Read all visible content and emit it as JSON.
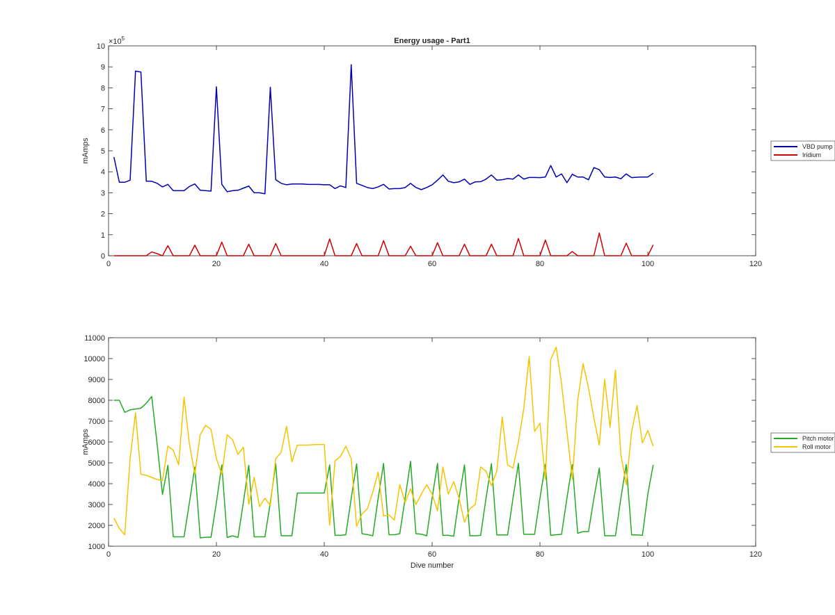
{
  "chart_data": [
    {
      "type": "line",
      "title": "Energy usage - Part1",
      "xlabel": "",
      "ylabel": "mAmps",
      "xlim": [
        0,
        120
      ],
      "ylim": [
        0,
        1000000
      ],
      "xticks": [
        "0",
        "20",
        "40",
        "60",
        "80",
        "100",
        "120"
      ],
      "yticks": [
        "0",
        "1",
        "2",
        "3",
        "4",
        "5",
        "6",
        "7",
        "8",
        "9",
        "10"
      ],
      "exponent_base": "×10",
      "exponent_power": "5",
      "legend_position": "outside-right",
      "series": [
        {
          "name": "VBD pump",
          "color": "#0000b0",
          "x": [
            1,
            2,
            3,
            4,
            5,
            6,
            7,
            8,
            9,
            10,
            11,
            12,
            13,
            14,
            15,
            16,
            17,
            18,
            19,
            20,
            21,
            22,
            23,
            24,
            25,
            26,
            27,
            28,
            29,
            30,
            31,
            32,
            33,
            34,
            35,
            36,
            37,
            38,
            39,
            40,
            41,
            42,
            43,
            44,
            45,
            46,
            47,
            48,
            49,
            50,
            51,
            52,
            53,
            54,
            55,
            56,
            57,
            58,
            59,
            60,
            61,
            62,
            63,
            64,
            65,
            66,
            67,
            68,
            69,
            70,
            71,
            72,
            73,
            74,
            75,
            76,
            77,
            78,
            79,
            80,
            81,
            82,
            83,
            84,
            85,
            86,
            87,
            88,
            89,
            90,
            91,
            92,
            93,
            94,
            95,
            96,
            97,
            98,
            99,
            100,
            101
          ],
          "y": [
            470000,
            350000,
            350000,
            360000,
            880000,
            875000,
            355000,
            355000,
            345000,
            328000,
            340000,
            310000,
            310000,
            310000,
            330000,
            342000,
            312000,
            310000,
            308000,
            805000,
            340000,
            305000,
            310000,
            312000,
            322000,
            332000,
            300000,
            300000,
            295000,
            803000,
            362000,
            345000,
            338000,
            342000,
            342000,
            342000,
            340000,
            340000,
            340000,
            338000,
            338000,
            320000,
            333000,
            325000,
            910000,
            345000,
            335000,
            325000,
            320000,
            328000,
            340000,
            318000,
            320000,
            320000,
            325000,
            345000,
            325000,
            315000,
            325000,
            338000,
            360000,
            385000,
            355000,
            348000,
            352000,
            365000,
            340000,
            352000,
            353000,
            365000,
            385000,
            360000,
            362000,
            368000,
            365000,
            385000,
            365000,
            373000,
            373000,
            372000,
            375000,
            430000,
            375000,
            390000,
            348000,
            388000,
            375000,
            375000,
            362000,
            420000,
            410000,
            375000,
            373000,
            375000,
            367000,
            390000,
            372000,
            374000,
            375000,
            375000,
            393000
          ]
        },
        {
          "name": "Iridium",
          "color": "#cc0000",
          "x": [
            1,
            2,
            3,
            4,
            5,
            6,
            7,
            8,
            9,
            10,
            11,
            12,
            13,
            14,
            15,
            16,
            17,
            18,
            19,
            20,
            21,
            22,
            23,
            24,
            25,
            26,
            27,
            28,
            29,
            30,
            31,
            32,
            33,
            34,
            35,
            36,
            37,
            38,
            39,
            40,
            41,
            42,
            43,
            44,
            45,
            46,
            47,
            48,
            49,
            50,
            51,
            52,
            53,
            54,
            55,
            56,
            57,
            58,
            59,
            60,
            61,
            62,
            63,
            64,
            65,
            66,
            67,
            68,
            69,
            70,
            71,
            72,
            73,
            74,
            75,
            76,
            77,
            78,
            79,
            80,
            81,
            82,
            83,
            84,
            85,
            86,
            87,
            88,
            89,
            90,
            91,
            92,
            93,
            94,
            95,
            96,
            97,
            98,
            99,
            100,
            101
          ],
          "y": [
            0,
            0,
            0,
            0,
            0,
            0,
            0,
            18000,
            10000,
            0,
            48000,
            0,
            0,
            0,
            0,
            50000,
            0,
            0,
            0,
            0,
            65000,
            0,
            0,
            0,
            0,
            55000,
            0,
            0,
            0,
            0,
            58000,
            0,
            0,
            0,
            0,
            0,
            0,
            0,
            0,
            0,
            80000,
            0,
            0,
            0,
            0,
            58000,
            0,
            0,
            0,
            0,
            72000,
            0,
            0,
            0,
            0,
            45000,
            0,
            0,
            0,
            0,
            62000,
            0,
            0,
            0,
            0,
            55000,
            0,
            0,
            0,
            0,
            55000,
            0,
            0,
            0,
            0,
            82000,
            0,
            0,
            0,
            0,
            75000,
            0,
            0,
            0,
            0,
            20000,
            0,
            0,
            0,
            0,
            108000,
            0,
            0,
            0,
            0,
            60000,
            0,
            0,
            0,
            0,
            52000
          ]
        }
      ]
    },
    {
      "type": "line",
      "title": "",
      "xlabel": "Dive number",
      "ylabel": "mAmps",
      "xlim": [
        0,
        120
      ],
      "ylim": [
        1000,
        11000
      ],
      "xticks": [
        "0",
        "20",
        "40",
        "60",
        "80",
        "100",
        "120"
      ],
      "yticks": [
        "1000",
        "2000",
        "3000",
        "4000",
        "5000",
        "6000",
        "7000",
        "8000",
        "9000",
        "10000",
        "11000"
      ],
      "legend_position": "outside-right",
      "series": [
        {
          "name": "Pitch motor",
          "color": "#22aa22",
          "x": [
            1,
            2,
            3,
            4,
            5,
            6,
            7,
            8,
            9,
            10,
            11,
            12,
            13,
            14,
            15,
            16,
            17,
            18,
            19,
            20,
            21,
            22,
            23,
            24,
            25,
            26,
            27,
            28,
            29,
            30,
            31,
            32,
            33,
            34,
            35,
            36,
            37,
            38,
            39,
            40,
            41,
            42,
            43,
            44,
            45,
            46,
            47,
            48,
            49,
            50,
            51,
            52,
            53,
            54,
            55,
            56,
            57,
            58,
            59,
            60,
            61,
            62,
            63,
            64,
            65,
            66,
            67,
            68,
            69,
            70,
            71,
            72,
            73,
            74,
            75,
            76,
            77,
            78,
            79,
            80,
            81,
            82,
            83,
            84,
            85,
            86,
            87,
            88,
            89,
            90,
            91,
            92,
            93,
            94,
            95,
            96,
            97,
            98,
            99,
            100,
            101
          ],
          "y": [
            8000,
            8000,
            7420,
            7540,
            7580,
            7620,
            7860,
            8180,
            5920,
            3480,
            4880,
            1450,
            1450,
            1450,
            3100,
            4800,
            1400,
            1430,
            1430,
            3100,
            4900,
            1420,
            1500,
            1420,
            3100,
            4880,
            1450,
            1450,
            1450,
            3100,
            4950,
            1500,
            1500,
            1500,
            3550,
            3550,
            3550,
            3550,
            3550,
            3550,
            4900,
            1520,
            1520,
            1550,
            3300,
            4950,
            1600,
            1560,
            1500,
            3300,
            4970,
            1550,
            1550,
            1600,
            3300,
            5070,
            1600,
            1580,
            1500,
            3300,
            4970,
            1520,
            1520,
            1480,
            3300,
            4900,
            1500,
            1500,
            1520,
            3300,
            4960,
            1540,
            1540,
            1540,
            3300,
            4980,
            1570,
            1570,
            1570,
            3300,
            4930,
            1520,
            1550,
            1570,
            3300,
            4920,
            1620,
            1700,
            1700,
            3300,
            4750,
            1500,
            1500,
            1500,
            3300,
            4920,
            1540,
            1540,
            1520,
            3500,
            4900
          ]
        },
        {
          "name": "Roll motor",
          "color": "#f5c400",
          "x": [
            1,
            2,
            3,
            4,
            5,
            6,
            7,
            8,
            9,
            10,
            11,
            12,
            13,
            14,
            15,
            16,
            17,
            18,
            19,
            20,
            21,
            22,
            23,
            24,
            25,
            26,
            27,
            28,
            29,
            30,
            31,
            32,
            33,
            34,
            35,
            36,
            37,
            38,
            39,
            40,
            41,
            42,
            43,
            44,
            45,
            46,
            47,
            48,
            49,
            50,
            51,
            52,
            53,
            54,
            55,
            56,
            57,
            58,
            59,
            60,
            61,
            62,
            63,
            64,
            65,
            66,
            67,
            68,
            69,
            70,
            71,
            72,
            73,
            74,
            75,
            76,
            77,
            78,
            79,
            80,
            81,
            82,
            83,
            84,
            85,
            86,
            87,
            88,
            89,
            90,
            91,
            92,
            93,
            94,
            95,
            96,
            97,
            98,
            99,
            100,
            101
          ],
          "y": [
            2350,
            1850,
            1550,
            5200,
            7400,
            4450,
            4400,
            4300,
            4200,
            4150,
            5800,
            5600,
            4900,
            8150,
            5900,
            4450,
            6350,
            6800,
            6600,
            5200,
            4450,
            6350,
            6100,
            5400,
            5750,
            3000,
            4300,
            2900,
            3300,
            2950,
            5200,
            5500,
            6750,
            5050,
            5850,
            5850,
            5850,
            5870,
            5880,
            5880,
            2000,
            5100,
            5300,
            5800,
            5200,
            1950,
            2550,
            2800,
            3600,
            4550,
            2450,
            2500,
            2250,
            3950,
            3100,
            3750,
            3000,
            3500,
            3950,
            3500,
            2700,
            4800,
            3500,
            4100,
            3300,
            2150,
            2800,
            3000,
            4800,
            4600,
            3900,
            4600,
            7200,
            4900,
            4750,
            6000,
            7600,
            10100,
            6500,
            6900,
            4200,
            9950,
            10550,
            8800,
            6500,
            4200,
            8000,
            9750,
            8600,
            7150,
            5850,
            9000,
            6700,
            9450,
            5400,
            3950,
            6500,
            7750,
            5950,
            6550,
            5800
          ]
        }
      ]
    }
  ]
}
